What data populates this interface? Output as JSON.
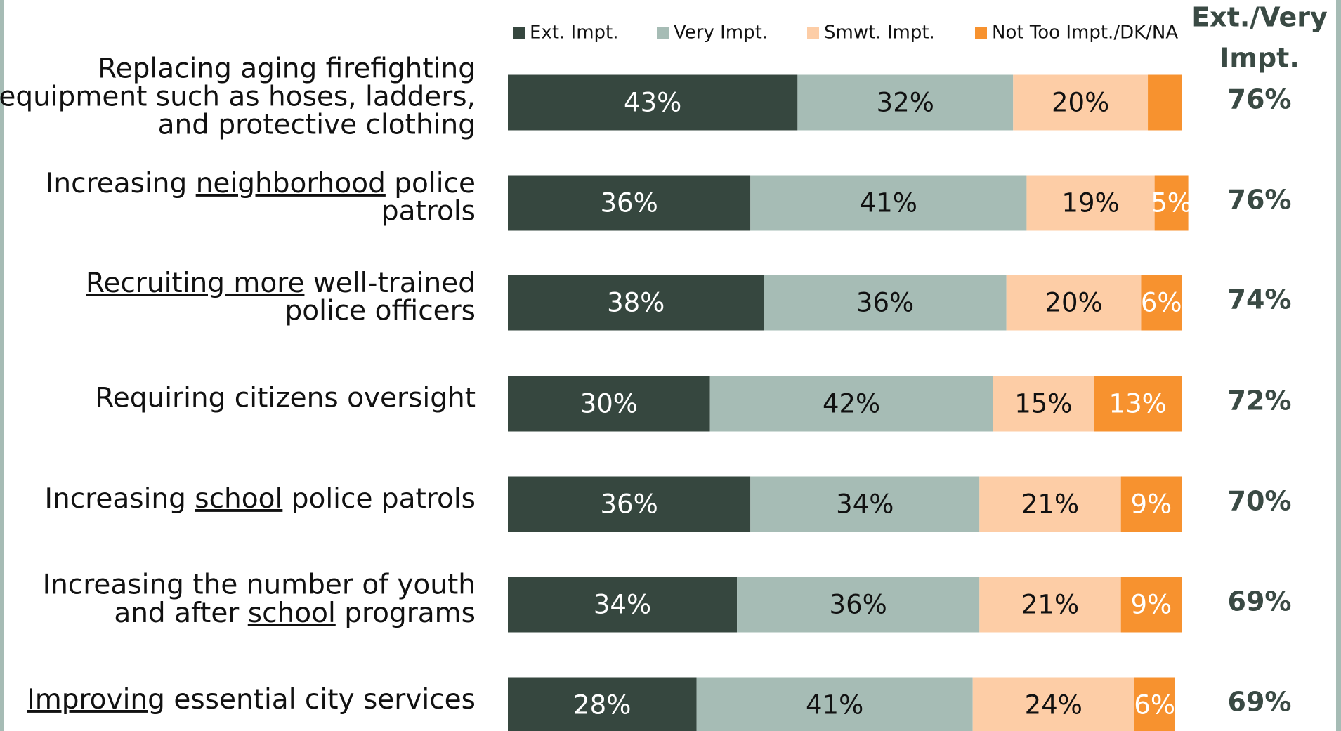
{
  "chart_data": {
    "type": "stacked-bar-horizontal",
    "categories": [
      [
        "Replacing aging firefighting",
        "equipment such as hoses, ladders,",
        "and protective clothing"
      ],
      [
        "Increasing neighborhood police",
        "patrols"
      ],
      [
        "Recruiting more well-trained",
        "police officers"
      ],
      [
        "Requiring citizens oversight"
      ],
      [
        "Increasing school police patrols"
      ],
      [
        "Increasing the number of youth",
        "and after school programs"
      ],
      [
        "Improving essential city services"
      ]
    ],
    "underlined": [
      "neighborhood",
      "Recruiting more",
      "school",
      "Improving"
    ],
    "xlim": [
      0,
      100
    ],
    "series": [
      {
        "name": "Ext. Impt.",
        "color": "#36473f",
        "label_color": "#ffffff",
        "values": [
          43,
          36,
          38,
          30,
          36,
          34,
          28
        ],
        "value_labels": [
          "43%",
          "36%",
          "38%",
          "30%",
          "36%",
          "34%",
          "28%"
        ]
      },
      {
        "name": "Very Impt.",
        "color": "#a6bcb5",
        "label_color": "#111111",
        "values": [
          32,
          41,
          36,
          42,
          34,
          36,
          41
        ],
        "value_labels": [
          "32%",
          "41%",
          "36%",
          "42%",
          "34%",
          "36%",
          "41%"
        ]
      },
      {
        "name": "Smwt. Impt.",
        "color": "#fdcda6",
        "label_color": "#111111",
        "values": [
          20,
          19,
          20,
          15,
          21,
          21,
          24
        ],
        "value_labels": [
          "20%",
          "19%",
          "20%",
          "15%",
          "21%",
          "21%",
          "24%"
        ]
      },
      {
        "name": "Not Too Impt./DK/NA",
        "color": "#f7922f",
        "label_color": "#ffffff",
        "values": [
          5,
          5,
          6,
          13,
          9,
          9,
          6
        ],
        "value_labels": [
          null,
          "5%",
          "6%",
          "13%",
          "9%",
          "9%",
          "6%"
        ]
      }
    ],
    "totals": {
      "name": [
        "Ext./Very",
        "Impt."
      ],
      "values": [
        76,
        76,
        74,
        72,
        70,
        69,
        69
      ],
      "value_labels": [
        "76%",
        "76%",
        "74%",
        "72%",
        "70%",
        "69%",
        "69%"
      ]
    }
  }
}
